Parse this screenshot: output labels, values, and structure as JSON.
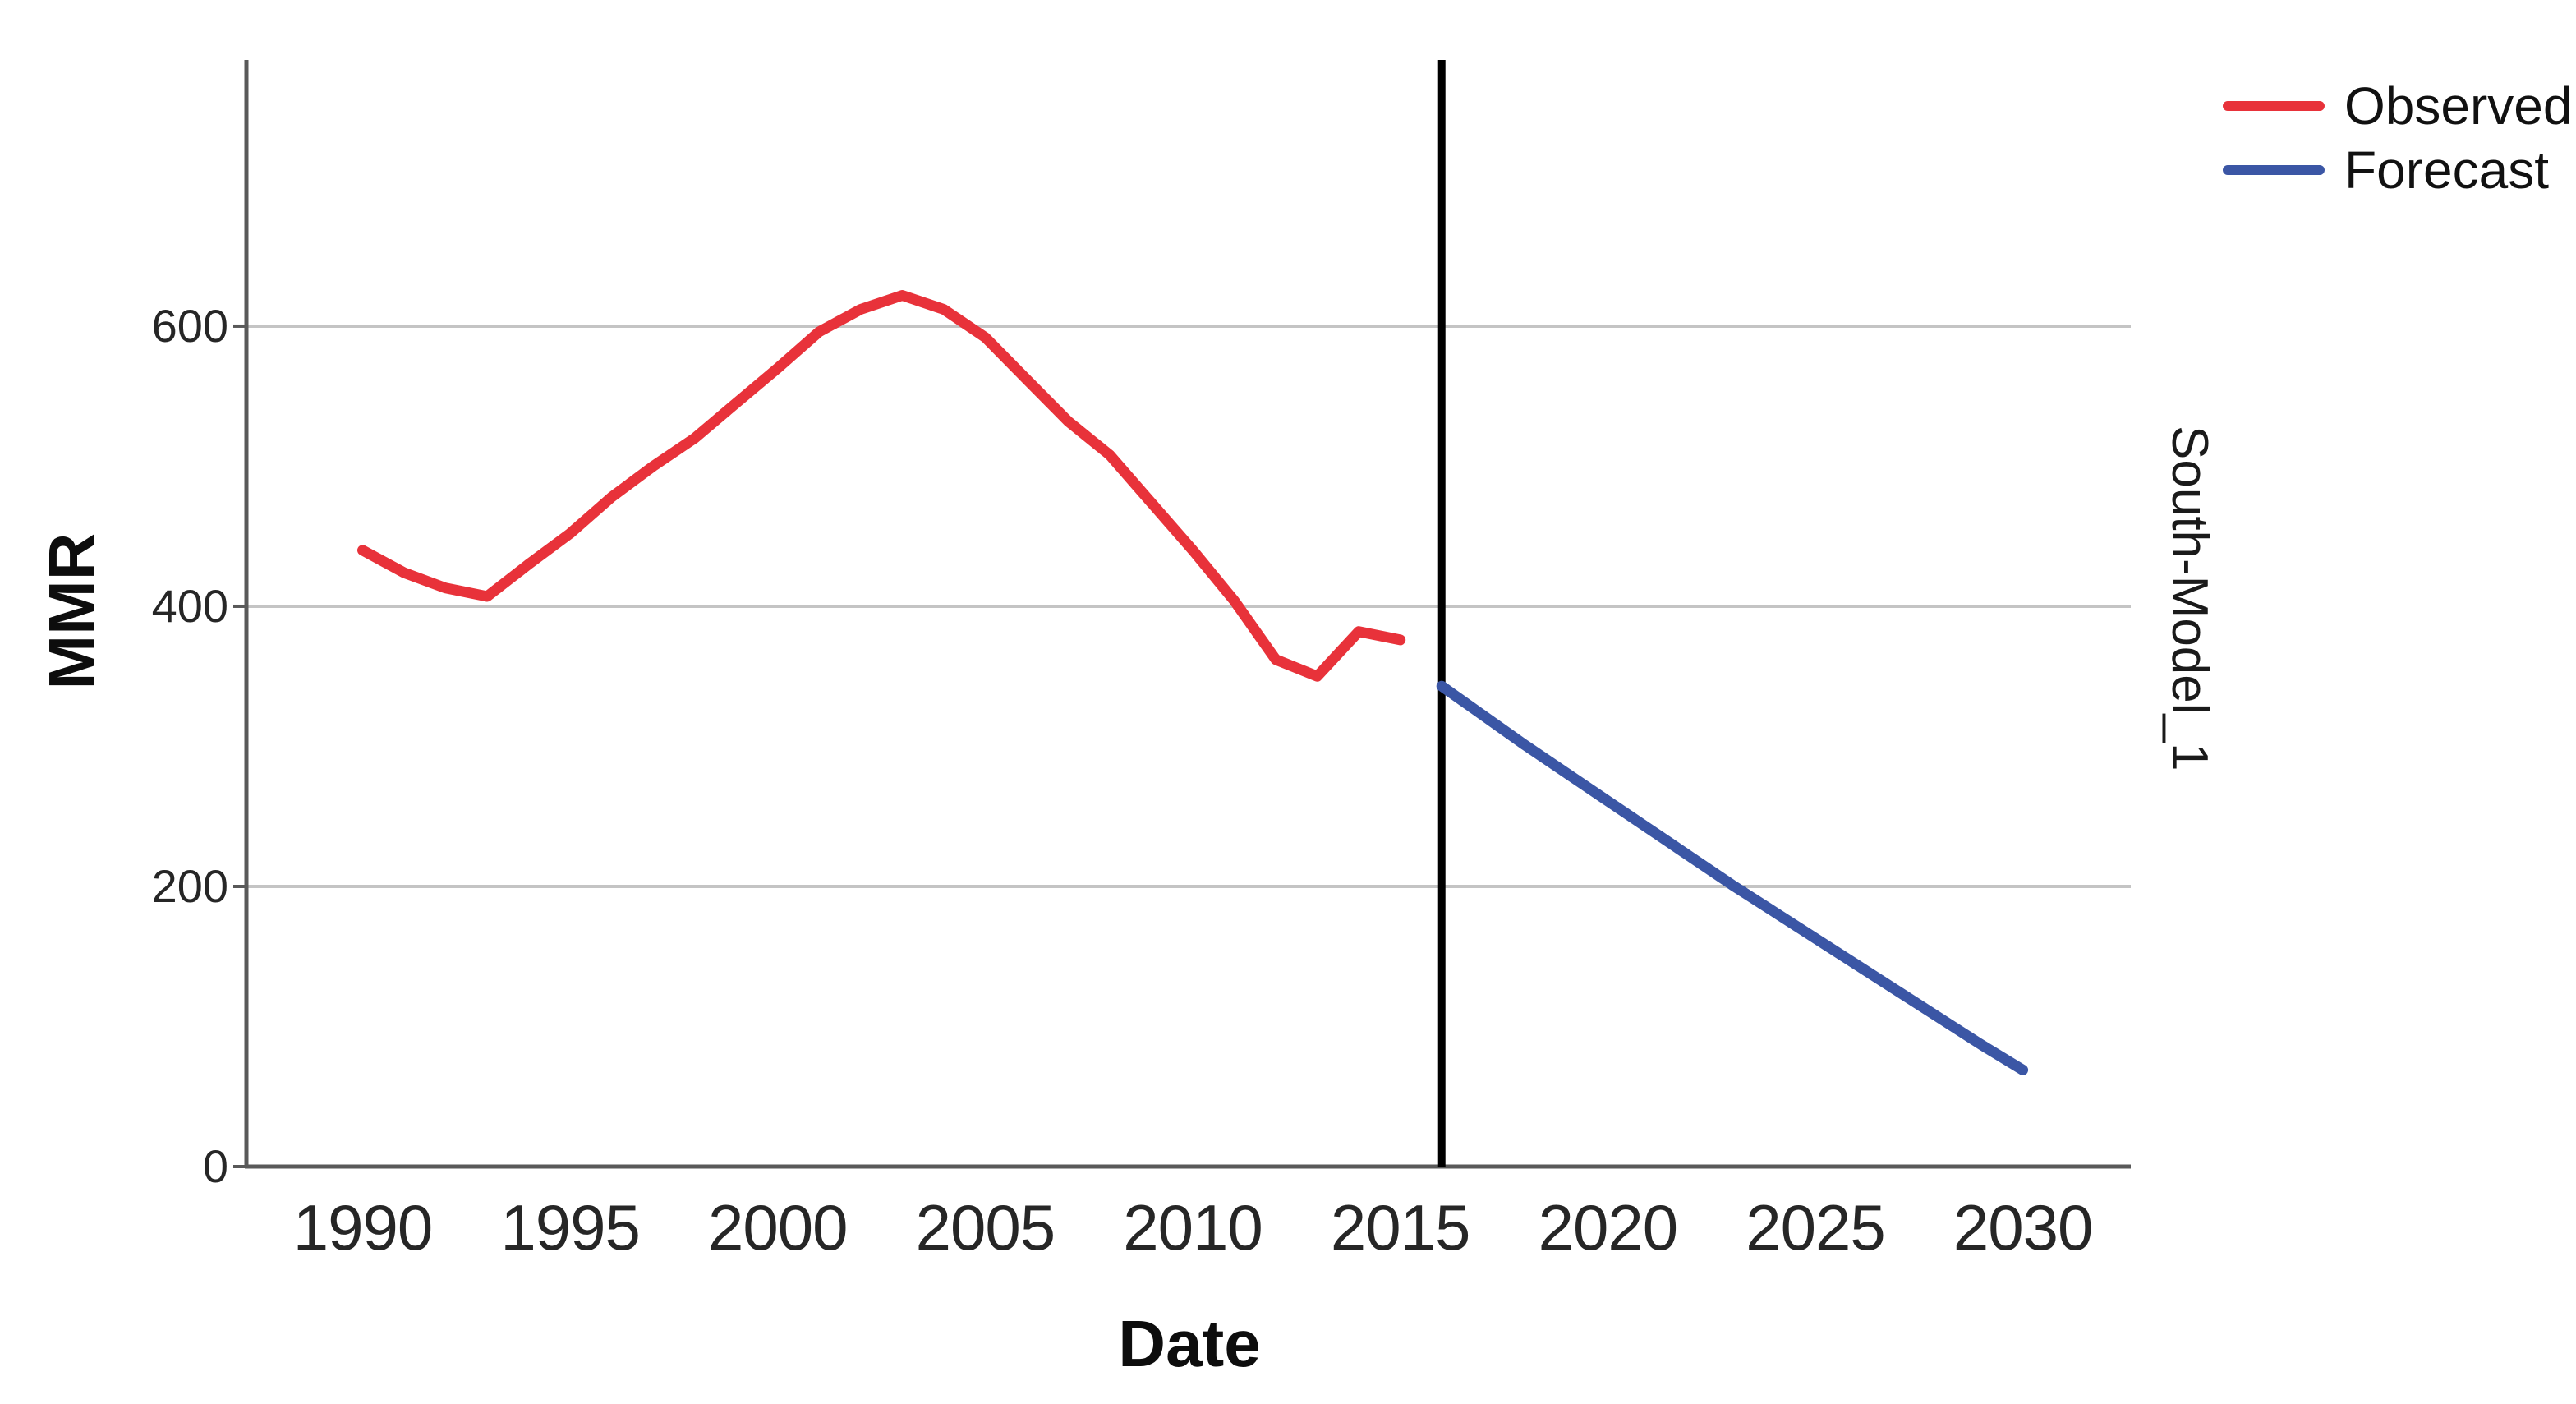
{
  "figure": {
    "y_axis_title": "MMR",
    "x_axis_title": "Date",
    "panel_label": "South-Model_1"
  },
  "legend": {
    "items": [
      {
        "label": "Observed",
        "color": "#e8323a"
      },
      {
        "label": "Forecast",
        "color": "#3b56a5"
      }
    ]
  },
  "colors": {
    "observed": "#e8323a",
    "forecast": "#3b56a5",
    "separator": "#000000",
    "gridline": "#c4c4c4",
    "axis": "#595959",
    "tick_text": "#262626"
  },
  "chart_data": {
    "type": "line",
    "title": "",
    "xlabel": "Date",
    "ylabel": "MMR",
    "panel": "South-Model_1",
    "grid": "horizontal",
    "legend_position": "top-right-outside",
    "x_ticks": [
      1990,
      1995,
      2000,
      2005,
      2010,
      2015,
      2020,
      2025,
      2030
    ],
    "y_ticks": [
      0,
      200,
      400,
      600
    ],
    "xlim": [
      1987.2,
      2032.6
    ],
    "ylim": [
      0,
      790
    ],
    "separator_x": 2016,
    "series": [
      {
        "name": "Observed",
        "color": "#e8323a",
        "x": [
          1990,
          1991,
          1992,
          1993,
          1994,
          1995,
          1996,
          1997,
          1998,
          1999,
          2000,
          2001,
          2002,
          2003,
          2004,
          2005,
          2006,
          2007,
          2008,
          2009,
          2010,
          2011,
          2012,
          2013,
          2014,
          2015
        ],
        "values": [
          440,
          424,
          413,
          407,
          430,
          452,
          478,
          500,
          520,
          545,
          570,
          596,
          612,
          622,
          612,
          592,
          562,
          532,
          508,
          474,
          440,
          404,
          362,
          350,
          382,
          376
        ]
      },
      {
        "name": "Forecast",
        "color": "#3b56a5",
        "x": [
          2016,
          2017,
          2018,
          2019,
          2020,
          2021,
          2022,
          2023,
          2024,
          2025,
          2026,
          2027,
          2028,
          2029,
          2030
        ],
        "values": [
          343,
          322,
          301,
          281,
          261,
          241,
          221,
          201,
          182,
          163,
          144,
          125,
          106,
          87,
          69
        ]
      }
    ]
  }
}
